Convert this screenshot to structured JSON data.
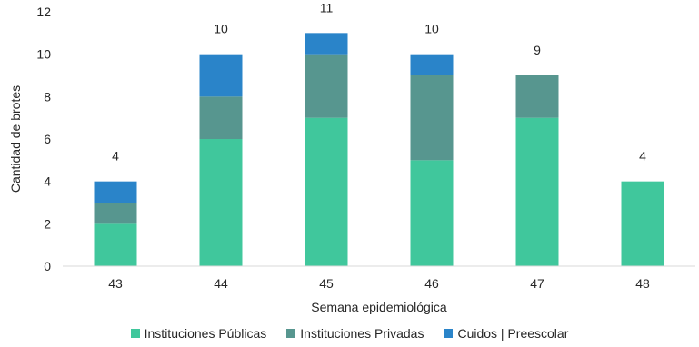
{
  "chart_data": {
    "type": "bar",
    "stacked": true,
    "categories": [
      "43",
      "44",
      "45",
      "46",
      "47",
      "48"
    ],
    "series": [
      {
        "name": "Instituciones Públicas",
        "color": "#40C79C",
        "values": [
          2,
          6,
          7,
          5,
          7,
          4
        ]
      },
      {
        "name": "Instituciones Privadas",
        "color": "#57968F",
        "values": [
          1,
          2,
          3,
          4,
          2,
          0
        ]
      },
      {
        "name": "Cuidos | Preescolar",
        "color": "#2A84C9",
        "values": [
          1,
          2,
          1,
          1,
          0,
          0
        ]
      }
    ],
    "totals": [
      4,
      10,
      11,
      10,
      9,
      4
    ],
    "xlabel": "Semana epidemiológica",
    "ylabel": "Cantidad de brotes",
    "ylim": [
      0,
      12
    ],
    "yticks": [
      0,
      2,
      4,
      6,
      8,
      10,
      12
    ],
    "grid": false,
    "legend_position": "bottom"
  }
}
